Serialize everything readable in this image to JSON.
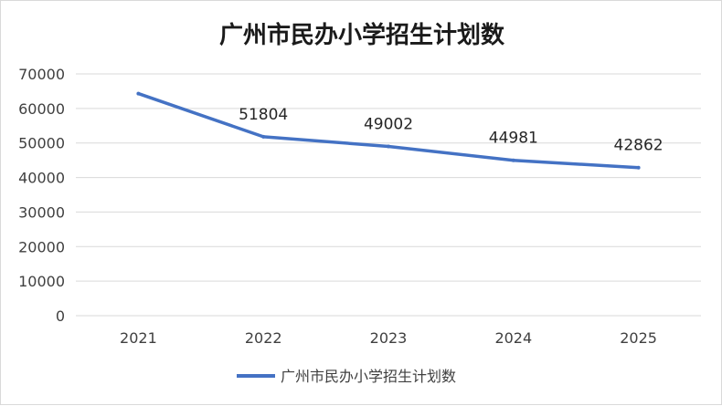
{
  "chart_data": {
    "type": "line",
    "title": "广州市民办小学招生计划数",
    "categories": [
      "2021",
      "2022",
      "2023",
      "2024",
      "2025"
    ],
    "series": [
      {
        "name": "广州市民办小学招生计划数",
        "values": [
          64300,
          51804,
          49002,
          44981,
          42862
        ],
        "data_labels": [
          "",
          "51804",
          "49002",
          "44981",
          "42862"
        ],
        "color": "#4472c4"
      }
    ],
    "y_ticks": [
      "0",
      "10000",
      "20000",
      "30000",
      "40000",
      "50000",
      "60000",
      "70000"
    ],
    "ylim": [
      0,
      70000
    ],
    "grid": true,
    "legend": "bottom"
  }
}
